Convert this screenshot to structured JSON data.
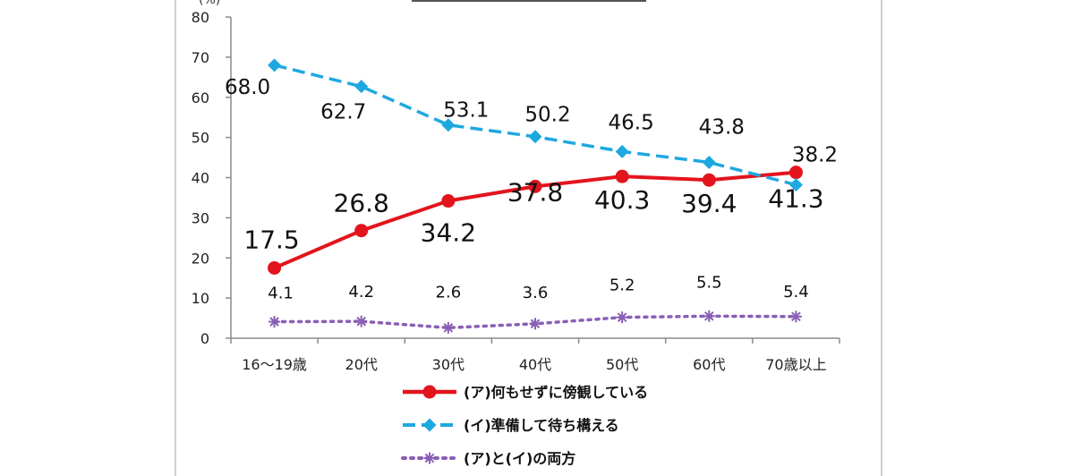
{
  "chart_data": {
    "type": "line",
    "categories": [
      "16〜19歳",
      "20代",
      "30代",
      "40代",
      "50代",
      "60代",
      "70歳以上"
    ],
    "ylim": [
      0,
      80
    ],
    "yticks": [
      0,
      10,
      20,
      30,
      40,
      50,
      60,
      70,
      80
    ],
    "grid": false,
    "legend_position": "bottom",
    "series": [
      {
        "name": "(ア)何もせずに傍観している",
        "values": [
          17.5,
          26.8,
          34.2,
          37.8,
          40.3,
          39.4,
          41.3
        ],
        "labels": [
          "17.5",
          "26.8",
          "34.2",
          "37.8",
          "40.3",
          "39.4",
          "41.3"
        ],
        "color": "#e3141c",
        "marker": "circle",
        "line_style": "solid"
      },
      {
        "name": "(イ)準備して待ち構える",
        "values": [
          68.0,
          62.7,
          53.1,
          50.2,
          46.5,
          43.8,
          38.2
        ],
        "labels": [
          "68.0",
          "62.7",
          "53.1",
          "50.2",
          "46.5",
          "43.8",
          "38.2"
        ],
        "color": "#1ea8e0",
        "marker": "diamond",
        "line_style": "dashed"
      },
      {
        "name": "(ア)と(イ)の両方",
        "values": [
          4.1,
          4.2,
          2.6,
          3.6,
          5.2,
          5.5,
          5.4
        ],
        "labels": [
          "4.1",
          "4.2",
          "2.6",
          "3.6",
          "5.2",
          "5.5",
          "5.4"
        ],
        "color": "#8a5fb5",
        "marker": "asterisk",
        "line_style": "dotted"
      }
    ]
  }
}
